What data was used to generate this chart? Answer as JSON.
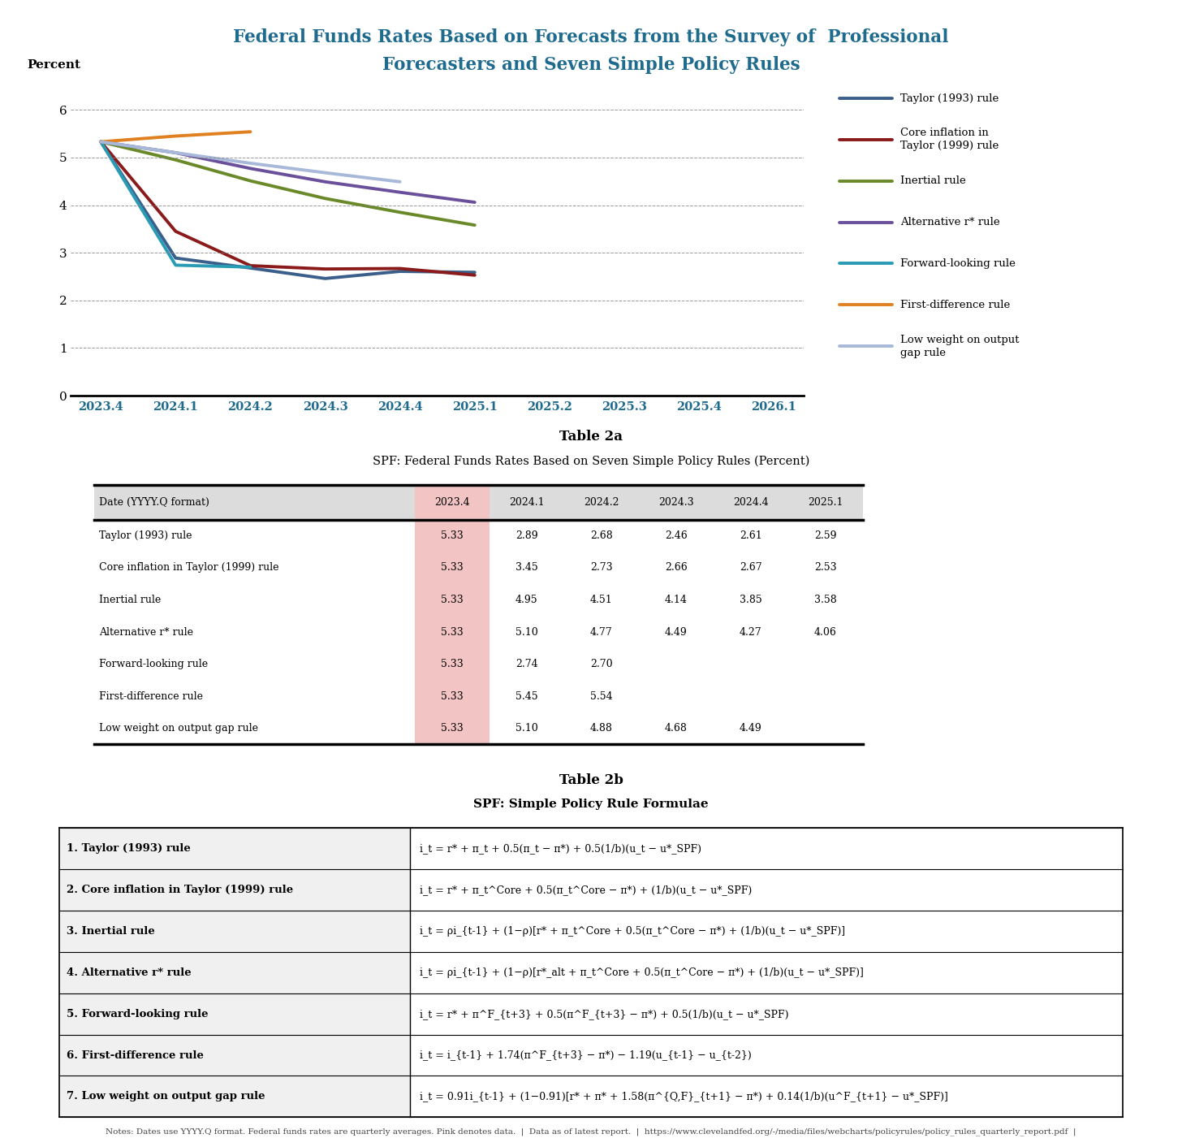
{
  "title_line1": "Federal Funds Rates Based on Forecasts from the Survey of  Professional",
  "title_line2": "Forecasters and Seven Simple Policy Rules",
  "title_color": "#1F6B8E",
  "ylabel": "Percent",
  "x_labels": [
    "2023.4",
    "2024.1",
    "2024.2",
    "2024.3",
    "2024.4",
    "2025.1",
    "2025.2",
    "2025.3",
    "2025.4",
    "2026.1"
  ],
  "ylim": [
    0,
    6.5
  ],
  "yticks": [
    0,
    1,
    2,
    3,
    4,
    5,
    6
  ],
  "series": [
    {
      "name": "Taylor (1993) rule",
      "legend": "Taylor (1993) rule",
      "color": "#3A5F8A",
      "x": [
        0,
        1,
        2,
        3,
        4,
        5
      ],
      "y": [
        5.33,
        2.89,
        2.68,
        2.46,
        2.61,
        2.59
      ]
    },
    {
      "name": "Core inflation in Taylor (1999) rule",
      "legend": "Core inflation in\nTaylor (1999) rule",
      "color": "#8B1A1A",
      "x": [
        0,
        1,
        2,
        3,
        4,
        5
      ],
      "y": [
        5.33,
        3.45,
        2.73,
        2.66,
        2.67,
        2.53
      ]
    },
    {
      "name": "Inertial rule",
      "legend": "Inertial rule",
      "color": "#6A8A2A",
      "x": [
        0,
        1,
        2,
        3,
        4,
        5
      ],
      "y": [
        5.33,
        4.95,
        4.51,
        4.14,
        3.85,
        3.58
      ]
    },
    {
      "name": "Alternative r* rule",
      "legend": "Alternative r* rule",
      "color": "#6A4F9B",
      "x": [
        0,
        1,
        2,
        3,
        4,
        5
      ],
      "y": [
        5.33,
        5.1,
        4.77,
        4.49,
        4.27,
        4.06
      ]
    },
    {
      "name": "Forward-looking rule",
      "legend": "Forward-looking rule",
      "color": "#2A9BB5",
      "x": [
        0,
        1,
        2
      ],
      "y": [
        5.33,
        2.74,
        2.7
      ]
    },
    {
      "name": "First-difference rule",
      "legend": "First-difference rule",
      "color": "#E08020",
      "x": [
        0,
        1,
        2
      ],
      "y": [
        5.33,
        5.45,
        5.54
      ]
    },
    {
      "name": "Low weight on output gap rule",
      "legend": "Low weight on output\ngap rule",
      "color": "#A8B8D8",
      "x": [
        0,
        1,
        2,
        3,
        4
      ],
      "y": [
        5.33,
        5.1,
        4.88,
        4.68,
        4.49
      ]
    }
  ],
  "table2a_title": "Table 2a",
  "table2a_subtitle": "SPF: Federal Funds Rates Based on Seven Simple Policy Rules (Percent)",
  "table2a_columns": [
    "Date (YYYY.Q format)",
    "2023.4",
    "2024.1",
    "2024.2",
    "2024.3",
    "2024.4",
    "2025.1"
  ],
  "table2a_rows": [
    [
      "Taylor (1993) rule",
      "5.33",
      "2.89",
      "2.68",
      "2.46",
      "2.61",
      "2.59"
    ],
    [
      "Core inflation in Taylor (1999) rule",
      "5.33",
      "3.45",
      "2.73",
      "2.66",
      "2.67",
      "2.53"
    ],
    [
      "Inertial rule",
      "5.33",
      "4.95",
      "4.51",
      "4.14",
      "3.85",
      "3.58"
    ],
    [
      "Alternative r* rule",
      "5.33",
      "5.10",
      "4.77",
      "4.49",
      "4.27",
      "4.06"
    ],
    [
      "Forward-looking rule",
      "5.33",
      "2.74",
      "2.70",
      "",
      "",
      ""
    ],
    [
      "First-difference rule",
      "5.33",
      "5.45",
      "5.54",
      "",
      "",
      ""
    ],
    [
      "Low weight on output gap rule",
      "5.33",
      "5.10",
      "4.88",
      "4.68",
      "4.49",
      ""
    ]
  ],
  "pink_col": "#F2C4C4",
  "table2b_title": "Table 2b",
  "table2b_subtitle": "SPF: Simple Policy Rule Formulae",
  "table2b_rows": [
    [
      "1. Taylor (1993) rule",
      "i_t = r* + π_t + 0.5(π_t − π*) + 0.5(1/b)(u_t − u*_SPF)"
    ],
    [
      "2. Core inflation in Taylor (1999) rule",
      "i_t = r* + π_t^Core + 0.5(π_t^Core − π*) + (1/b)(u_t − u*_SPF)"
    ],
    [
      "3. Inertial rule",
      "i_t = ρi_{t-1} + (1−ρ)[r* + π_t^Core + 0.5(π_t^Core − π*) + (1/b)(u_t − u*_SPF)]"
    ],
    [
      "4. Alternative r* rule",
      "i_t = ρi_{t-1} + (1−ρ)[r*_alt + π_t^Core + 0.5(π_t^Core − π*) + (1/b)(u_t − u*_SPF)]"
    ],
    [
      "5. Forward-looking rule",
      "i_t = r* + π^F_{t+3} + 0.5(π^F_{t+3} − π*) + 0.5(1/b)(u_t − u*_SPF)"
    ],
    [
      "6. First-difference rule",
      "i_t = i_{t-1} + 1.74(π^F_{t+3} − π*) − 1.19(u_{t-1} − u_{t-2})"
    ],
    [
      "7. Low weight on output gap rule",
      "i_t = 0.91i_{t-1} + (1−0.91)[r* + π* + 1.58(π^{Q,F}_{t+1} − π*) + 0.14(1/b)(u^F_{t+1} − u*_SPF)]"
    ]
  ],
  "notes": "Notes: Dates use YYYY.Q format. Federal funds rates are quarterly averages. Pink denotes data.  |  Data as of latest report.  |  https://www.clevelandfed.org/-/media/files/webcharts/policyrules/policy_rules_quarterly_report.pdf  |"
}
